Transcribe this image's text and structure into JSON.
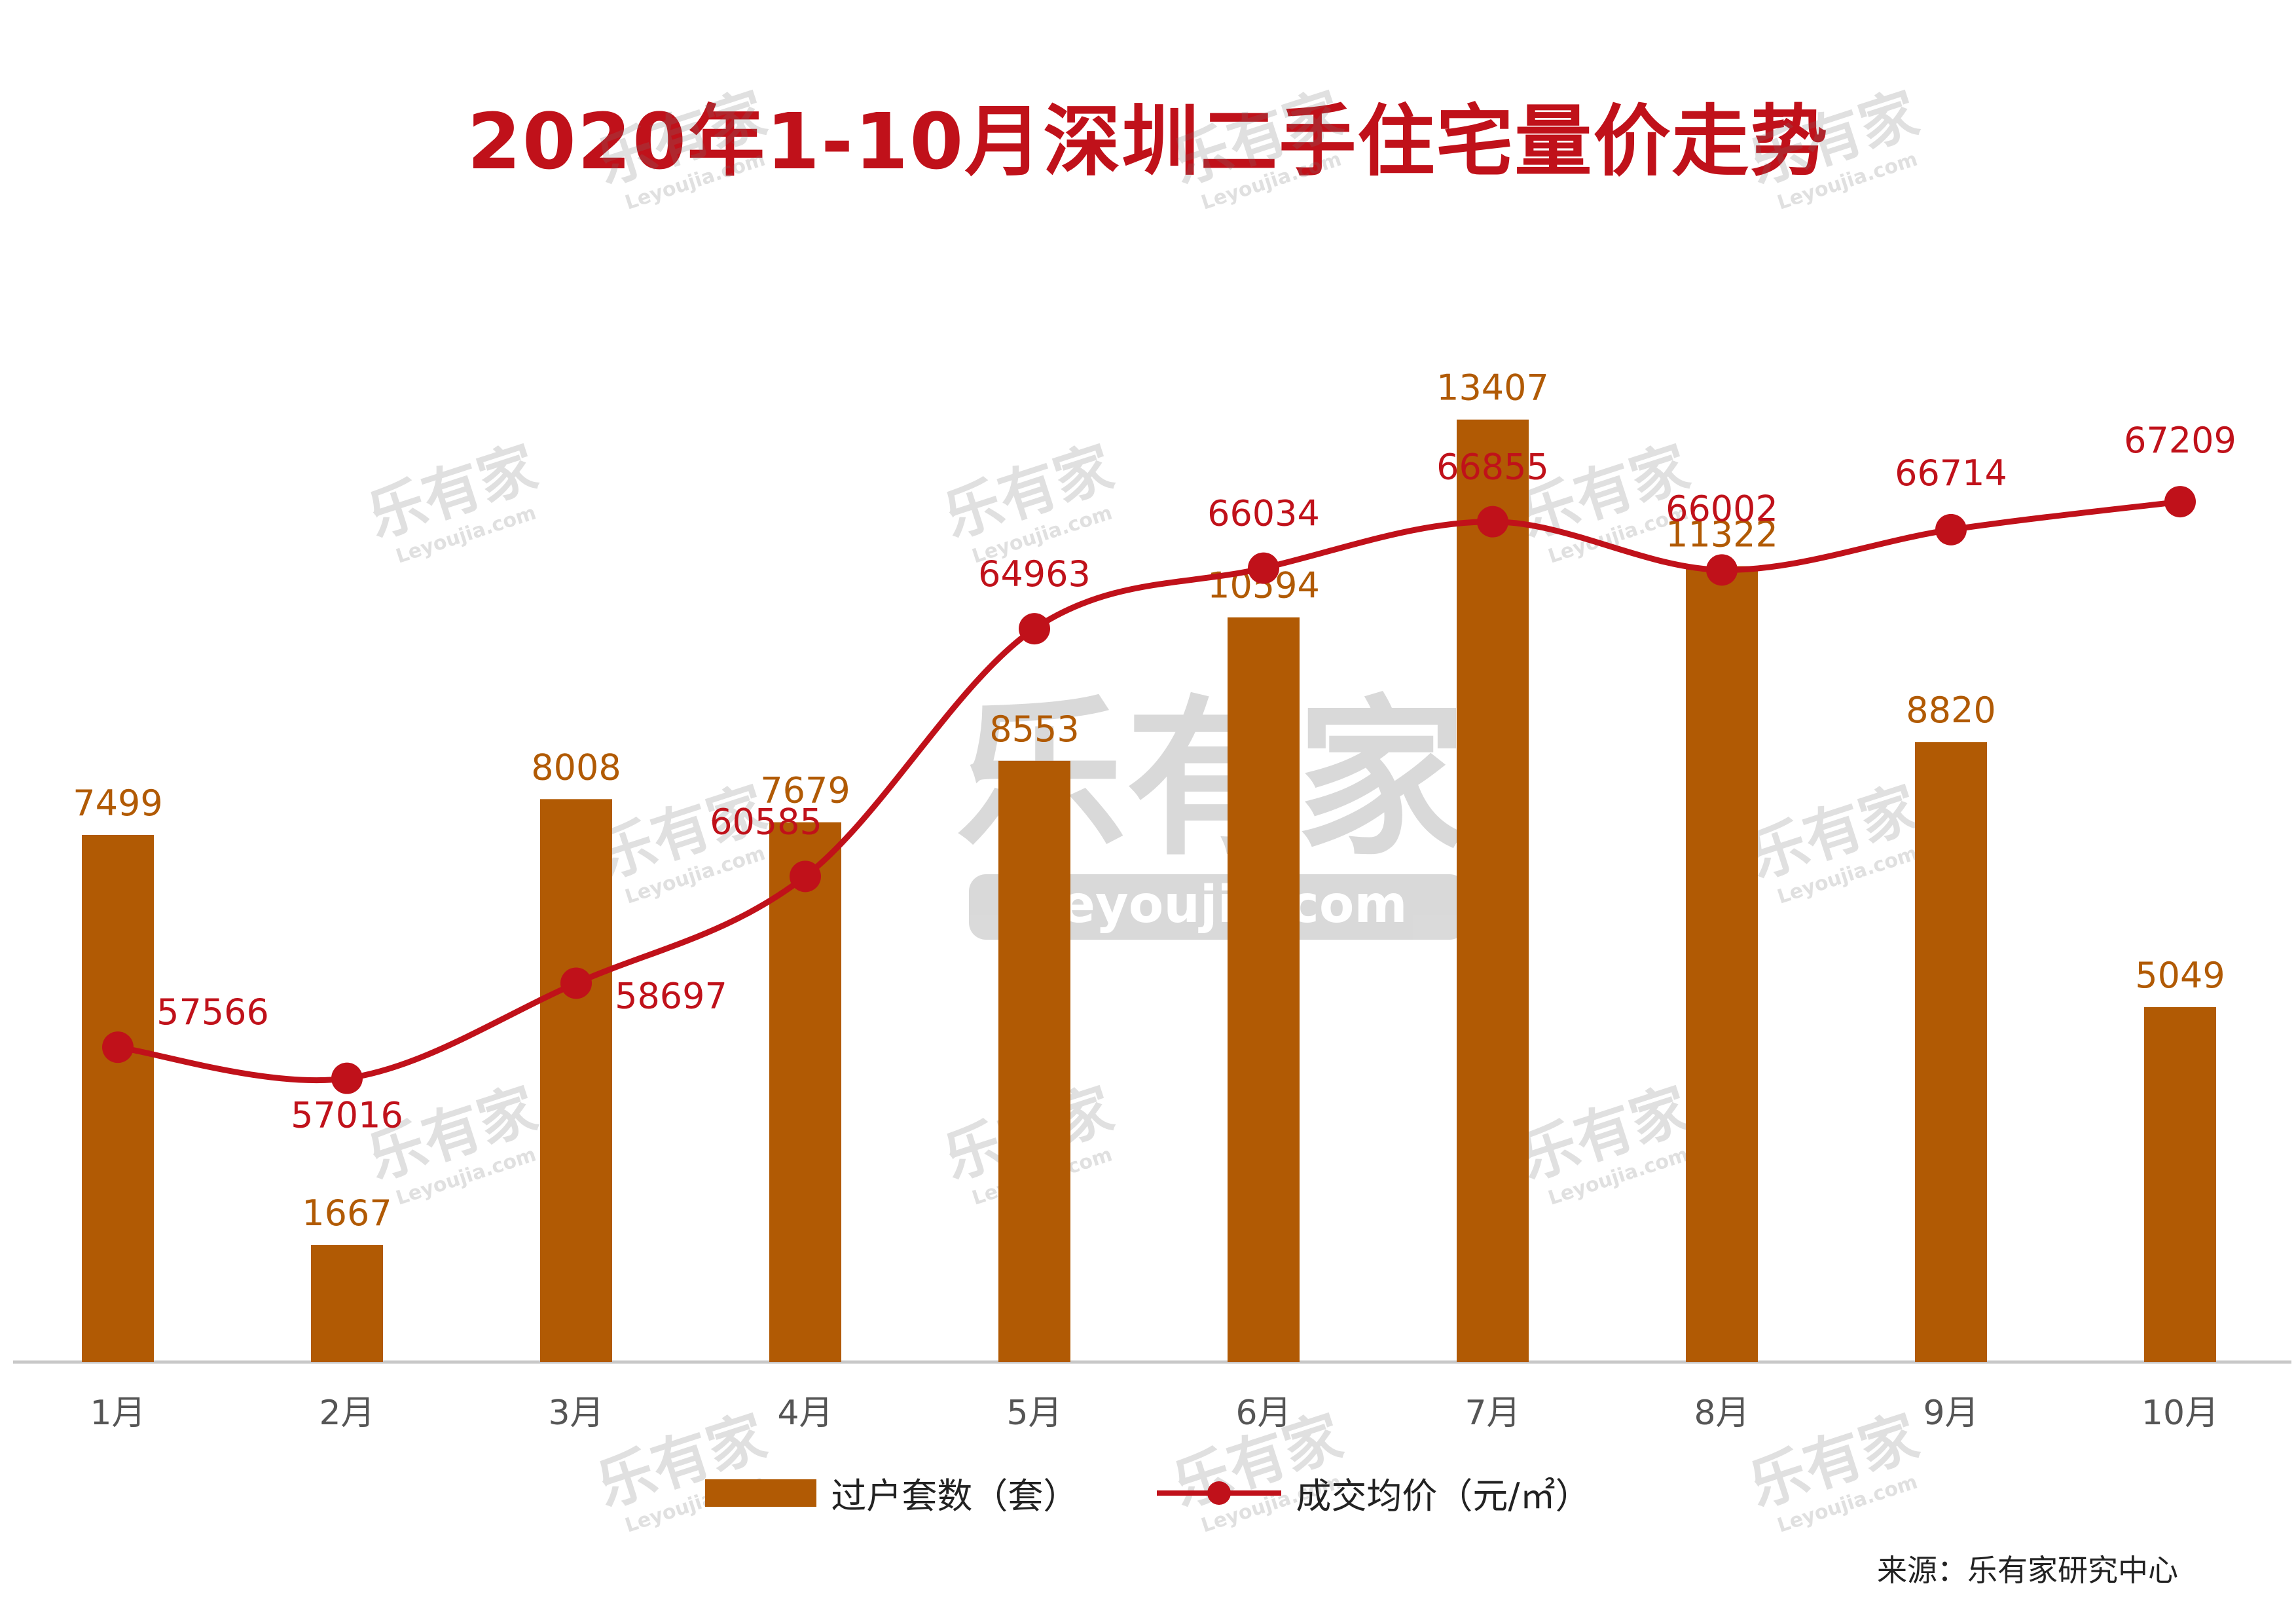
{
  "chart_data": {
    "type": "bar+line",
    "title": "2020年1-10月深圳二手住宅量价走势",
    "categories": [
      "1月",
      "2月",
      "3月",
      "4月",
      "5月",
      "6月",
      "7月",
      "8月",
      "9月",
      "10月"
    ],
    "series": [
      {
        "name": "过户套数（套）",
        "type": "bar",
        "color": "#b15a04",
        "values": [
          7499,
          1667,
          8008,
          7679,
          8553,
          10594,
          13407,
          11322,
          8820,
          5049
        ],
        "ylim": [
          0,
          13600
        ]
      },
      {
        "name": "成交均价（元/㎡）",
        "type": "line",
        "color": "#c0111a",
        "values": [
          57566,
          57016,
          58697,
          60585,
          64963,
          66034,
          66855,
          66002,
          66714,
          67209
        ],
        "ylim": [
          52000,
          68900
        ]
      }
    ],
    "xlabel": "",
    "ylabel": "",
    "grid": false,
    "legend_position": "bottom-center"
  },
  "source": "来源：乐有家研究中心",
  "watermark": {
    "brand": "乐有家",
    "site": "Leyoujia.com"
  }
}
